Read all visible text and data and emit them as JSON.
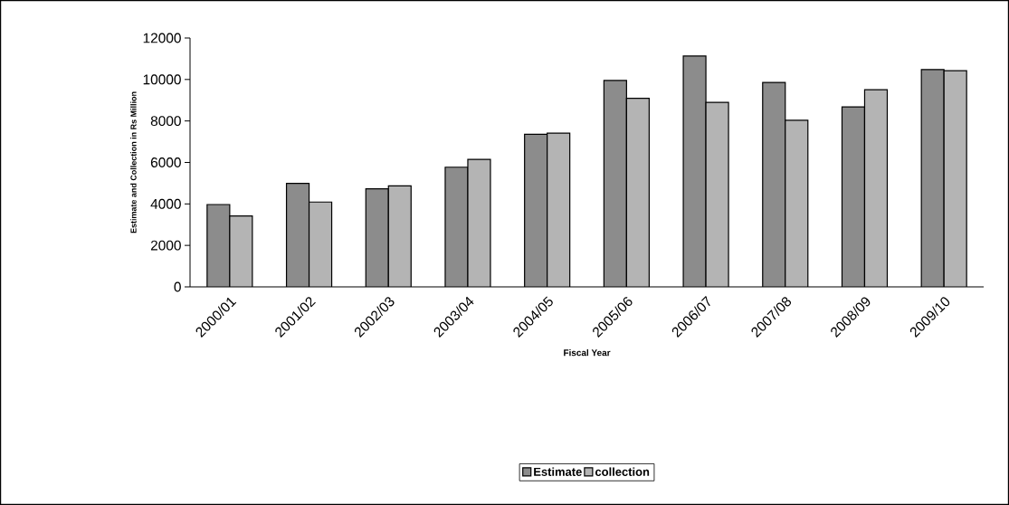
{
  "chart_data": {
    "type": "bar",
    "xlabel": "Fiscal Year",
    "ylabel": "Estimate and Collection in Rs Million",
    "categories": [
      "2000/01",
      "2001/02",
      "2002/03",
      "2003/04",
      "2004/05",
      "2005/06",
      "2006/07",
      "2007/08",
      "2008/09",
      "2009/10"
    ],
    "series": [
      {
        "name": "Estimate",
        "color": "#8c8c8c",
        "values": [
          3970,
          4990,
          4730,
          5770,
          7360,
          9950,
          11130,
          9860,
          8680,
          10480
        ]
      },
      {
        "name": "collection",
        "color": "#b4b4b4",
        "values": [
          3420,
          4090,
          4870,
          6150,
          7410,
          9090,
          8900,
          8030,
          9510,
          10420
        ]
      }
    ],
    "ylim": [
      0,
      12000
    ],
    "yticks": [
      0,
      2000,
      4000,
      6000,
      8000,
      10000,
      12000
    ],
    "grid": false,
    "legend": "bottom"
  }
}
